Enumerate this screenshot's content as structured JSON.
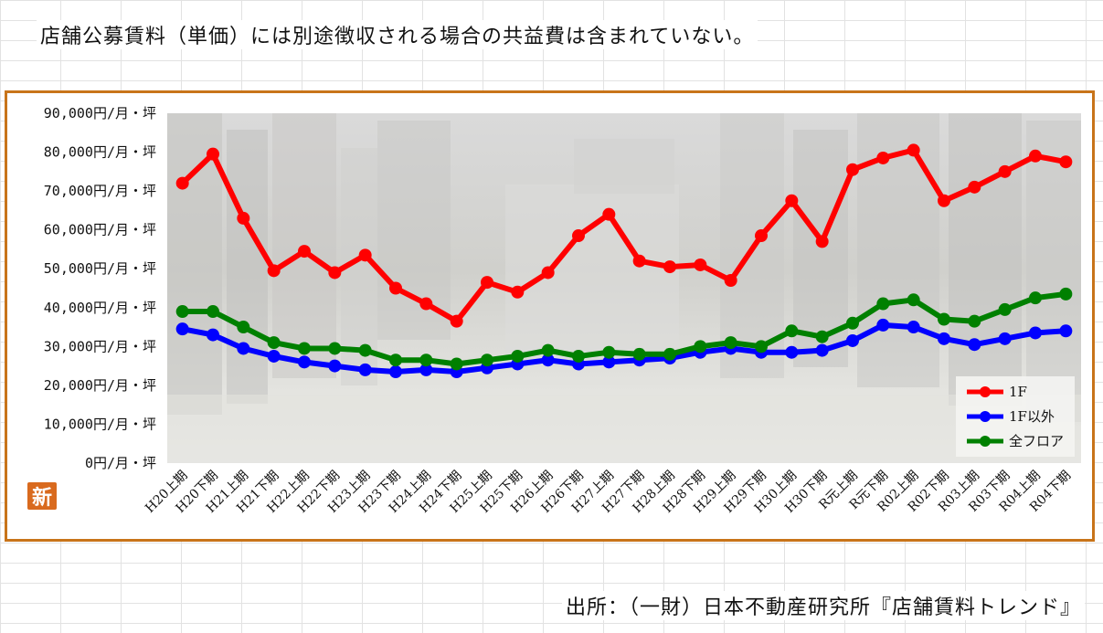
{
  "note": "店舗公募賃料（単価）には別途徴収される場合の共益費は含まれていない。",
  "source": "出所：（一財）日本不動産研究所『店舗賃料トレンド』",
  "badge": "新",
  "chart_data": {
    "type": "line",
    "title": "",
    "xlabel": "",
    "ylabel": "",
    "ylim": [
      0,
      90000
    ],
    "yticks": [
      0,
      10000,
      20000,
      30000,
      40000,
      50000,
      60000,
      70000,
      80000,
      90000
    ],
    "ytick_labels": [
      "0円/月・坪",
      "10,000円/月・坪",
      "20,000円/月・坪",
      "30,000円/月・坪",
      "40,000円/月・坪",
      "50,000円/月・坪",
      "60,000円/月・坪",
      "70,000円/月・坪",
      "80,000円/月・坪",
      "90,000円/月・坪"
    ],
    "categories": [
      "H20上期",
      "H20下期",
      "H21上期",
      "H21下期",
      "H22上期",
      "H22下期",
      "H23上期",
      "H23下期",
      "H24上期",
      "H24下期",
      "H25上期",
      "H25下期",
      "H26上期",
      "H26下期",
      "H27上期",
      "H27下期",
      "H28上期",
      "H28下期",
      "H29上期",
      "H29下期",
      "H30上期",
      "H30下期",
      "R元上期",
      "R元下期",
      "R02上期",
      "R02下期",
      "R03上期",
      "R03下期",
      "R04上期",
      "R04下期"
    ],
    "grid": false,
    "background": "photo of a crowded Tokyo shopping street (faded)",
    "legend_position": "bottom-right",
    "series": [
      {
        "name": "1F",
        "color": "#ff0000",
        "values": [
          72000,
          79500,
          63000,
          49500,
          54500,
          49000,
          53500,
          45000,
          41000,
          36500,
          46500,
          44000,
          49000,
          58500,
          64000,
          52000,
          50500,
          51000,
          47000,
          58500,
          67500,
          57000,
          75500,
          78500,
          80500,
          67500,
          71000,
          75000,
          79000,
          77500
        ]
      },
      {
        "name": "1F以外",
        "color": "#0000ff",
        "values": [
          34500,
          33000,
          29500,
          27500,
          26000,
          25000,
          24000,
          23500,
          24000,
          23500,
          24500,
          25500,
          26500,
          25500,
          26000,
          26500,
          27000,
          28500,
          29500,
          28500,
          28500,
          29000,
          31500,
          35500,
          35000,
          32000,
          30500,
          32000,
          33500,
          34000
        ]
      },
      {
        "name": "全フロア",
        "color": "#008000",
        "values": [
          39000,
          39000,
          35000,
          31000,
          29500,
          29500,
          29000,
          26500,
          26500,
          25500,
          26500,
          27500,
          29000,
          27500,
          28500,
          28000,
          28000,
          30000,
          31000,
          30000,
          34000,
          32500,
          36000,
          41000,
          42000,
          37000,
          36500,
          39500,
          42500,
          43500
        ]
      }
    ]
  }
}
